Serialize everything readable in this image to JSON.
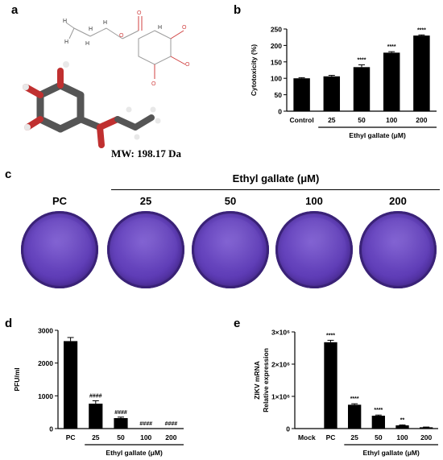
{
  "panels": {
    "a": "a",
    "b": "b",
    "c": "c",
    "d": "d",
    "e": "e"
  },
  "molecule": {
    "mw_label": "MW: 198.17 Da"
  },
  "panel_c": {
    "group_label": "Ethyl gallate (μM)",
    "plates": [
      "PC",
      "25",
      "50",
      "100",
      "200"
    ]
  },
  "chart_data": [
    {
      "id": "b",
      "type": "bar",
      "ylabel": "Cytotoxicity (%)",
      "xlabel": "Ethyl gallate (μM)",
      "categories": [
        "Control",
        "25",
        "50",
        "100",
        "200"
      ],
      "values": [
        100,
        106,
        134,
        178,
        230
      ],
      "errors": [
        2,
        3,
        7,
        3,
        2
      ],
      "annotations": [
        "",
        "",
        "****",
        "****",
        "****"
      ],
      "yticks": [
        "0",
        "50",
        "100",
        "150",
        "200",
        "250"
      ],
      "ylim": [
        0,
        250
      ],
      "group_start_index": 1
    },
    {
      "id": "d",
      "type": "bar",
      "ylabel": "PFU/ml",
      "xlabel": "Ethyl gallate (μM)",
      "categories": [
        "PC",
        "25",
        "50",
        "100",
        "200"
      ],
      "values": [
        2670,
        760,
        320,
        0,
        0
      ],
      "errors": [
        110,
        90,
        30,
        0,
        0
      ],
      "annotations": [
        "",
        "####",
        "####",
        "####",
        "####"
      ],
      "yticks": [
        "0",
        "1000",
        "2000",
        "3000"
      ],
      "ylim": [
        0,
        3000
      ],
      "group_start_index": 1
    },
    {
      "id": "e",
      "type": "bar",
      "ylabel": "ZIKV mRNA\nRelative expression",
      "xlabel": "Ethyl gallate (μM)",
      "categories": [
        "Mock",
        "PC",
        "25",
        "50",
        "100",
        "200"
      ],
      "values": [
        0,
        2680000,
        740000,
        400000,
        100000,
        40000
      ],
      "errors": [
        0,
        60000,
        30000,
        20000,
        15000,
        8000
      ],
      "annotations": [
        "",
        "****",
        "****",
        "****",
        "**",
        ""
      ],
      "yticks": [
        "0",
        "1×10⁶",
        "2×10⁶",
        "3×10⁶"
      ],
      "ylim": [
        0,
        3000000
      ],
      "group_start_index": 2
    }
  ]
}
